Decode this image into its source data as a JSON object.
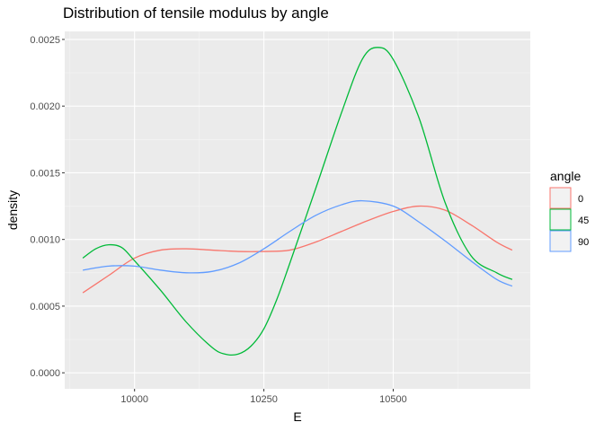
{
  "chart_data": {
    "type": "line",
    "title": "Distribution of tensile modulus by angle",
    "xlabel": "E",
    "ylabel": "density",
    "xlim": [
      9900,
      10730
    ],
    "ylim": [
      0,
      0.0025
    ],
    "x_ticks": [
      10000,
      10250,
      10500
    ],
    "x_tick_labels": [
      "10000",
      "10250",
      "10500"
    ],
    "y_ticks": [
      0,
      0.0005,
      0.001,
      0.0015,
      0.002,
      0.0025
    ],
    "y_tick_labels": [
      "0.0000",
      "0.0005",
      "0.0010",
      "0.0015",
      "0.0020",
      "0.0025"
    ],
    "grid": true,
    "legend": {
      "title": "angle",
      "position": "right"
    },
    "series": [
      {
        "name": "0",
        "color": "#F8766D",
        "points": [
          [
            9900,
            0.0006
          ],
          [
            9950,
            0.00073
          ],
          [
            10000,
            0.00086
          ],
          [
            10050,
            0.00092
          ],
          [
            10100,
            0.00093
          ],
          [
            10150,
            0.00092
          ],
          [
            10200,
            0.00091
          ],
          [
            10250,
            0.00091
          ],
          [
            10300,
            0.00092
          ],
          [
            10350,
            0.00098
          ],
          [
            10400,
            0.00106
          ],
          [
            10450,
            0.00114
          ],
          [
            10500,
            0.00121
          ],
          [
            10550,
            0.00125
          ],
          [
            10600,
            0.00122
          ],
          [
            10650,
            0.00111
          ],
          [
            10700,
            0.00098
          ],
          [
            10730,
            0.00092
          ]
        ]
      },
      {
        "name": "45",
        "color": "#00BA38",
        "points": [
          [
            9900,
            0.00086
          ],
          [
            9925,
            0.00093
          ],
          [
            9950,
            0.00096
          ],
          [
            9975,
            0.00094
          ],
          [
            10000,
            0.00084
          ],
          [
            10050,
            0.00062
          ],
          [
            10100,
            0.00038
          ],
          [
            10150,
            0.00019
          ],
          [
            10175,
            0.00014
          ],
          [
            10200,
            0.00014
          ],
          [
            10225,
            0.0002
          ],
          [
            10250,
            0.00033
          ],
          [
            10275,
            0.00055
          ],
          [
            10300,
            0.00082
          ],
          [
            10350,
            0.00138
          ],
          [
            10400,
            0.00195
          ],
          [
            10440,
            0.00235
          ],
          [
            10470,
            0.00244
          ],
          [
            10500,
            0.00235
          ],
          [
            10550,
            0.00191
          ],
          [
            10600,
            0.00128
          ],
          [
            10650,
            0.00088
          ],
          [
            10700,
            0.00075
          ],
          [
            10730,
            0.0007
          ]
        ]
      },
      {
        "name": "90",
        "color": "#619CFF",
        "points": [
          [
            9900,
            0.00077
          ],
          [
            9950,
            0.0008
          ],
          [
            10000,
            0.0008
          ],
          [
            10050,
            0.00077
          ],
          [
            10100,
            0.00075
          ],
          [
            10150,
            0.00076
          ],
          [
            10200,
            0.00082
          ],
          [
            10250,
            0.00093
          ],
          [
            10300,
            0.00106
          ],
          [
            10350,
            0.00118
          ],
          [
            10400,
            0.00126
          ],
          [
            10440,
            0.00129
          ],
          [
            10500,
            0.00125
          ],
          [
            10550,
            0.00113
          ],
          [
            10600,
            0.00099
          ],
          [
            10650,
            0.00084
          ],
          [
            10700,
            0.0007
          ],
          [
            10730,
            0.00065
          ]
        ]
      }
    ]
  }
}
